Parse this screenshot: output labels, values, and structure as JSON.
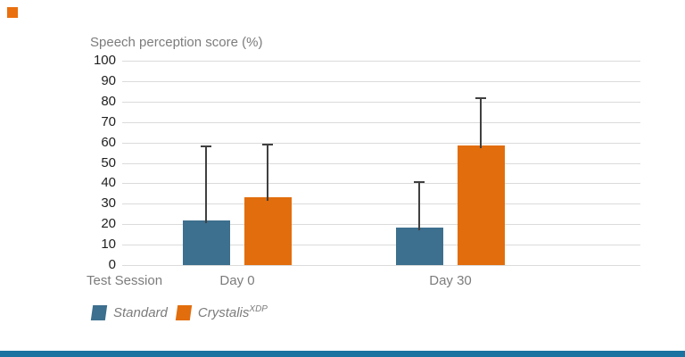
{
  "accents": {
    "top_left_square_color": "#EA6F0E",
    "bottom_bar_color": "#1A73A0"
  },
  "chart_data": {
    "type": "bar",
    "title": "Speech perception score (%)",
    "xlabel": "Test Session",
    "categories": [
      "Day 0",
      "Day 30"
    ],
    "series": [
      {
        "name": "Standard",
        "color": "#3D6F8E",
        "values": [
          22,
          18.5
        ],
        "error_high": [
          58.5,
          41
        ],
        "legend": {
          "label": "Standard",
          "sup": ""
        }
      },
      {
        "name": "Crystalis XDP",
        "color": "#E26D0C",
        "values": [
          33,
          58.5
        ],
        "error_high": [
          59.5,
          82
        ],
        "legend": {
          "label": "Crystalis",
          "sup": "XDP"
        }
      }
    ],
    "ylim": [
      0,
      100
    ],
    "yticks": [
      0,
      10,
      20,
      30,
      40,
      50,
      60,
      70,
      80,
      90,
      100
    ],
    "grid": "horizontal-only",
    "error_bars": "upper-only",
    "legend_position": "bottom-left",
    "grid_color": "#DBDBDB",
    "error_bar_color": "#404040",
    "text_colors": {
      "muted": "#7C7C7C",
      "tick": "#1F1F1F"
    }
  }
}
